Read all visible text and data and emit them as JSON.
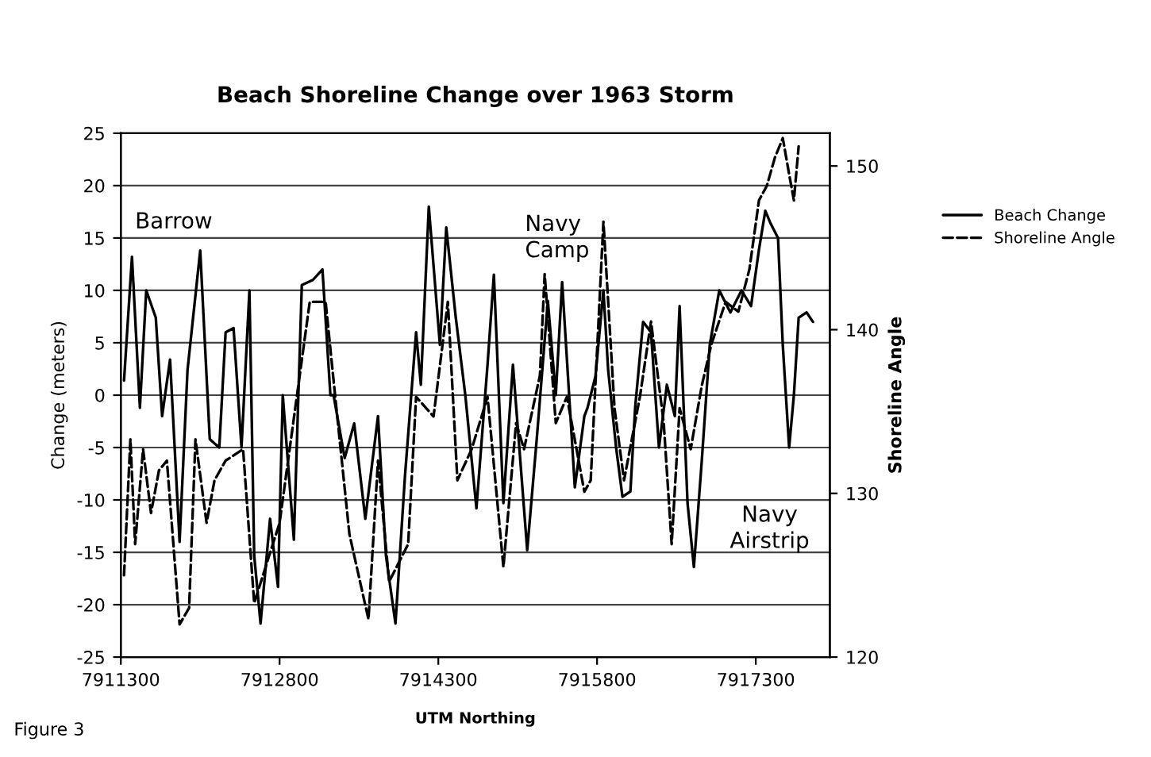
{
  "chart_data": {
    "type": "line",
    "title": "Beach Shoreline Change over 1963 Storm",
    "xlabel": "UTM Northing",
    "ylabel": "Change (meters)",
    "y2label": "Shoreline Angle",
    "annotations": [
      "Barrow",
      "Navy\nCamp",
      "Navy\nAirstrip",
      "Figure 3"
    ],
    "xlim": [
      7911300,
      7918000
    ],
    "xticks": [
      7911300,
      7912800,
      7914300,
      7915800,
      7917300
    ],
    "ylim": [
      -25,
      25
    ],
    "yticks": [
      -25,
      -20,
      -15,
      -10,
      -5,
      0,
      5,
      10,
      15,
      20,
      25
    ],
    "y2lim": [
      120,
      152
    ],
    "y2ticks": [
      120,
      130,
      140,
      150
    ],
    "grid": "y",
    "legend": "right",
    "series": [
      {
        "name": "Beach Change",
        "color": "#000000",
        "line_style": "solid",
        "x": [
          7911330,
          7911405,
          7911480,
          7911540,
          7911630,
          7911690,
          7911765,
          7911855,
          7911930,
          7912050,
          7912140,
          7912230,
          7912290,
          7912365,
          7912440,
          7912515,
          7912560,
          7912620,
          7912710,
          7912785,
          7912830,
          7912935,
          7913010,
          7913115,
          7913205,
          7913280,
          7913310,
          7913415,
          7913505,
          7913610,
          7913730,
          7913805,
          7913895,
          7913985,
          7914090,
          7914135,
          7914210,
          7914315,
          7914375,
          7914465,
          7914555,
          7914660,
          7914765,
          7914825,
          7914915,
          7915005,
          7915140,
          7915230,
          7915335,
          7915410,
          7915470,
          7915590,
          7915680,
          7915710,
          7915785,
          7915860,
          7915905,
          7915980,
          7916040,
          7916115,
          7916160,
          7916235,
          7916310,
          7916385,
          7916460,
          7916535,
          7916580,
          7916655,
          7916715,
          7916790,
          7916865,
          7916955,
          7917060,
          7917165,
          7917255,
          7917330,
          7917390,
          7917435,
          7917510,
          7917555,
          7917615,
          7917660,
          7917705,
          7917780,
          7917840
        ],
        "values": [
          1.4,
          13.2,
          -1.2,
          10,
          7.4,
          -2,
          3.4,
          -14,
          2.4,
          13.8,
          -4.2,
          -5,
          6,
          6.4,
          -5,
          10,
          -15.3,
          -21.8,
          -11.8,
          -18.3,
          0,
          -13.8,
          10.5,
          11,
          12,
          0,
          0,
          -6,
          -2.7,
          -11.8,
          -2,
          -15.3,
          -21.8,
          -7.7,
          6,
          1,
          18,
          4.8,
          16,
          7.4,
          0,
          -10.8,
          2.9,
          11.5,
          -10.3,
          2.9,
          -14.8,
          -4.2,
          9,
          0,
          10.8,
          -8.8,
          -2,
          -1.2,
          1.8,
          10,
          2.4,
          -5,
          -9.7,
          -9.2,
          -1.2,
          7,
          6,
          -5,
          1,
          -2,
          8.5,
          -10.3,
          -16.4,
          -6.2,
          4.8,
          10,
          7.9,
          10,
          8.5,
          13.9,
          17.6,
          16.5,
          15,
          4.8,
          -5,
          0,
          7.4,
          7.9,
          7
        ]
      },
      {
        "name": "Shoreline Angle",
        "color": "#000000",
        "line_style": "dashed",
        "axis": "y2",
        "x": [
          7911330,
          7911390,
          7911435,
          7911510,
          7911585,
          7911660,
          7911735,
          7911855,
          7911945,
          7912005,
          7912110,
          7912185,
          7912290,
          7912455,
          7912560,
          7912800,
          7913085,
          7913235,
          7913340,
          7913460,
          7913640,
          7913730,
          7913835,
          7914015,
          7914090,
          7914255,
          7914390,
          7914480,
          7914615,
          7914765,
          7914915,
          7915035,
          7915110,
          7915260,
          7915305,
          7915410,
          7915515,
          7915680,
          7915740,
          7915860,
          7915965,
          7916055,
          7916205,
          7916310,
          7916430,
          7916505,
          7916580,
          7916685,
          7916790,
          7916880,
          7917015,
          7917135,
          7917240,
          7917330,
          7917405,
          7917480,
          7917555,
          7917615,
          7917660,
          7917705
        ],
        "values": [
          125,
          133.3,
          126.9,
          132.7,
          128.8,
          131.4,
          132,
          122,
          123,
          133.3,
          128.2,
          130.8,
          132,
          132.7,
          123.3,
          128.2,
          141.7,
          141.7,
          135,
          127.5,
          122.3,
          132,
          124.6,
          126.9,
          135.9,
          134.7,
          141.7,
          130.8,
          132.7,
          135.9,
          125.5,
          134.3,
          132.7,
          137.2,
          143.4,
          134.3,
          135.9,
          130.1,
          130.8,
          146.6,
          135.2,
          130.8,
          135.9,
          140.5,
          134.3,
          126.9,
          135.2,
          132.7,
          136.6,
          139.1,
          141.7,
          141.1,
          143.7,
          147.9,
          148.8,
          150.5,
          151.7,
          149.5,
          147.9,
          151.2
        ]
      }
    ]
  }
}
